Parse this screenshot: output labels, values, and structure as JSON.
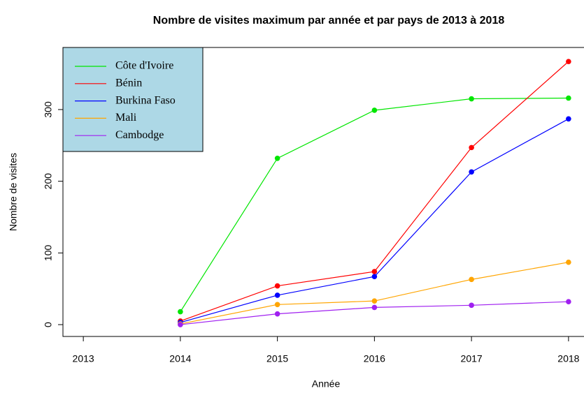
{
  "chart_data": {
    "type": "line",
    "title": "Nombre de visites maximum par année et par pays de 2013 à 2018",
    "x_label": "Année",
    "y_label": "Nombre de visites",
    "x": [
      2014,
      2015,
      2016,
      2017,
      2018
    ],
    "series": [
      {
        "name": "Côte d'Ivoire",
        "color": "#00e600",
        "values": [
          18,
          232,
          299,
          315,
          316
        ]
      },
      {
        "name": "Bénin",
        "color": "#ff0000",
        "values": [
          5,
          54,
          74,
          247,
          367
        ]
      },
      {
        "name": "Burkina Faso",
        "color": "#0000ff",
        "values": [
          3,
          41,
          67,
          213,
          287
        ]
      },
      {
        "name": "Mali",
        "color": "#ffa500",
        "values": [
          1,
          28,
          33,
          63,
          87
        ]
      },
      {
        "name": "Cambodge",
        "color": "#a020f0",
        "values": [
          0,
          15,
          24,
          27,
          32
        ]
      }
    ],
    "xlim": [
      2012.79,
      2018.21
    ],
    "xticks": [
      2013,
      2014,
      2015,
      2016,
      2017,
      2018
    ],
    "ylim": [
      -16.5,
      386.6
    ],
    "yticks": [
      0,
      100,
      200,
      300
    ],
    "legend": "top-left",
    "legend_color": "#add8e6"
  }
}
